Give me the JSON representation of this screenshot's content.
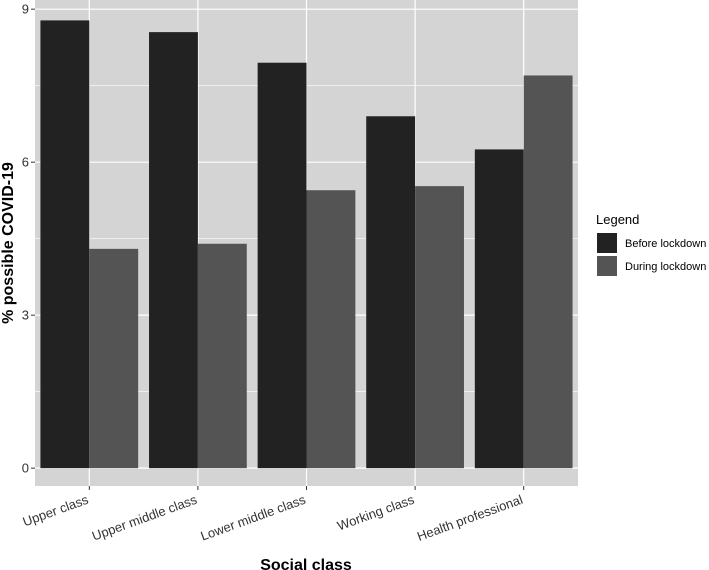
{
  "chart_data": {
    "type": "bar",
    "xlabel": "Social class",
    "ylabel": "% possible COVID-19",
    "categories": [
      "Upper class",
      "Upper middle class",
      "Lower middle class",
      "Working class",
      "Health professional"
    ],
    "series": [
      {
        "name": "Before lockdown",
        "values": [
          8.78,
          8.55,
          7.95,
          6.9,
          6.25
        ],
        "color": "#222222"
      },
      {
        "name": "During lockdown",
        "values": [
          4.3,
          4.4,
          5.45,
          5.53,
          7.7
        ],
        "color": "#545454"
      }
    ],
    "ylim": [
      -0.35,
      9.18
    ],
    "yticks": [
      0,
      3,
      6,
      9
    ],
    "grid": true,
    "legend": {
      "title": "Legend",
      "position": "right"
    },
    "colors": {
      "panel": "#d4d4d4",
      "grid": "#ffffff"
    }
  }
}
